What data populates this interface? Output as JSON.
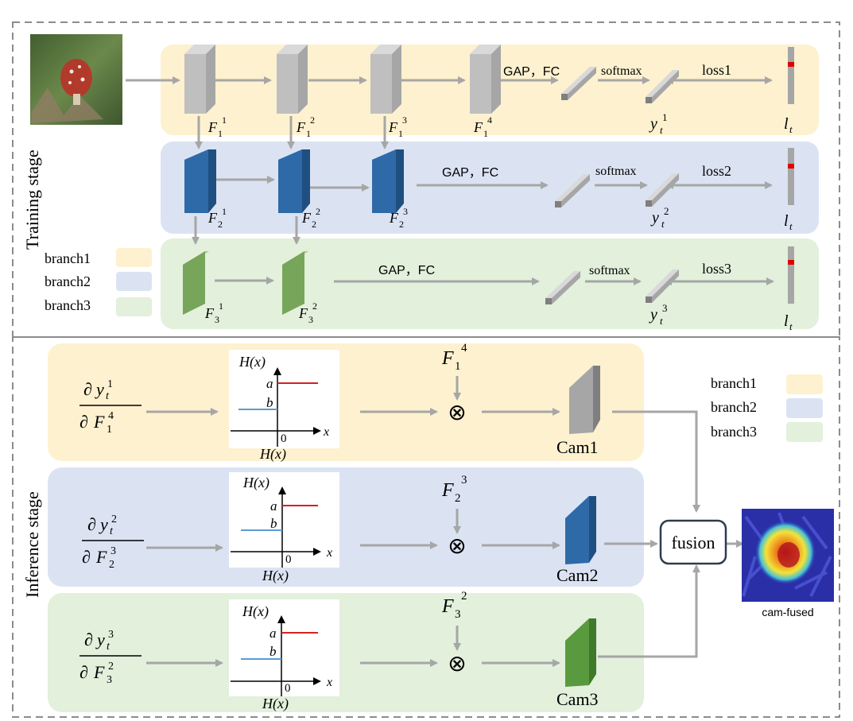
{
  "training": {
    "stage_label": "Training stage",
    "legend": [
      "branch1",
      "branch2",
      "branch3"
    ],
    "op_gap_fc": "GAP，FC",
    "op_softmax": "softmax",
    "losses": [
      "loss1",
      "loss2",
      "loss3"
    ],
    "feature_sub": [
      "1",
      "2",
      "3"
    ],
    "feature_sup": [
      "1",
      "2",
      "3",
      "4"
    ],
    "output_var": "y",
    "output_sub": "t",
    "label_var": "l",
    "label_sub": "t"
  },
  "inference": {
    "stage_label": "Inference stage",
    "legend": [
      "branch1",
      "branch2",
      "branch3"
    ],
    "grad_num_sup": [
      "1",
      "2",
      "3"
    ],
    "grad_den_sub": [
      "1",
      "2",
      "3"
    ],
    "grad_den_sup": [
      "4",
      "3",
      "2"
    ],
    "step_plot": {
      "title": "H(x)",
      "level_a": "a",
      "level_b": "b",
      "origin": "0",
      "x_axis": "x",
      "caption": "H(x)"
    },
    "multiply_symbol": "⊗",
    "cams": [
      "Cam1",
      "Cam2",
      "Cam3"
    ],
    "fusion": "fusion",
    "fused_caption": "cam-fused"
  },
  "colors": {
    "branch1_bg": "#fdf1cf",
    "branch2_bg": "#dbe3f3",
    "branch3_bg": "#e2f0dc",
    "gray_block": "#bfbfbf",
    "blue_block": "#2e6aa8",
    "green_block": "#77a55a",
    "arrow": "#a6a6a6",
    "step_high": "#d62020",
    "step_low": "#5b9bd5"
  },
  "icons": [
    "input-photo-icon",
    "label-bar-icon",
    "multiply-icon",
    "heatmap-icon"
  ]
}
